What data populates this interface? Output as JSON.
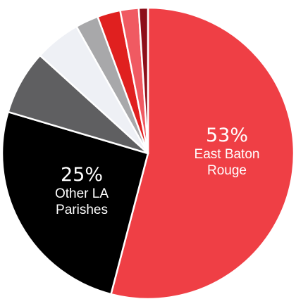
{
  "chart_data": {
    "type": "pie",
    "start_angle_deg": 0,
    "direction": "clockwise",
    "slices": [
      {
        "label": "East Baton Rouge",
        "percent_text": "53%",
        "value": 53,
        "color": "#ef3f45",
        "show_label": true
      },
      {
        "label": "Other LA Parishes",
        "percent_text": "25%",
        "value": 25,
        "color": "#000000",
        "show_label": true
      },
      {
        "label": "",
        "value": 7,
        "color": "#5f5f61",
        "show_label": false
      },
      {
        "label": "",
        "value": 5,
        "color": "#eef0f5",
        "show_label": false
      },
      {
        "label": "",
        "value": 2.5,
        "color": "#a8a8aa",
        "show_label": false
      },
      {
        "label": "",
        "value": 2.5,
        "color": "#e0201f",
        "show_label": false
      },
      {
        "label": "",
        "value": 2,
        "color": "#f05a62",
        "show_label": false
      },
      {
        "label": "",
        "value": 1,
        "color": "#8d0f1a",
        "show_label": false
      }
    ]
  }
}
